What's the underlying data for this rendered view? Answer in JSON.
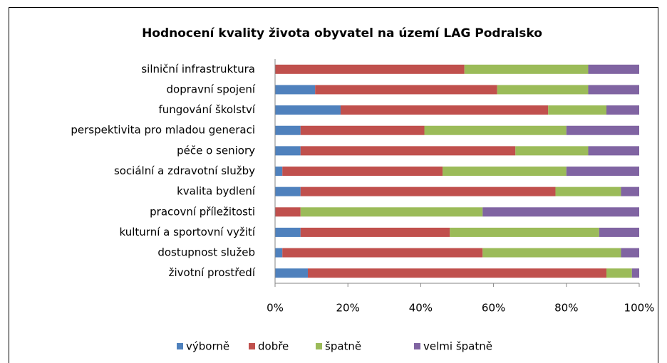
{
  "chart_data": {
    "type": "stacked_bar_horizontal",
    "title": "Hodnocení kvality života obyvatel na území  LAG Podralsko",
    "categories": [
      "silniční infrastruktura",
      "dopravní spojení",
      "fungování školství",
      "perspektivita pro mladou generaci",
      "péče o seniory",
      "sociální a zdravotní služby",
      "kvalita bydlení",
      "pracovní příležitosti",
      "kulturní a sportovní vyžití",
      "dostupnost služeb",
      "životní prostředí"
    ],
    "series": [
      {
        "name": "výborně",
        "color": "#4f81bd",
        "values": [
          0,
          11,
          18,
          7,
          7,
          2,
          7,
          0,
          7,
          2,
          9
        ]
      },
      {
        "name": "dobře",
        "color": "#c0504d",
        "values": [
          52,
          50,
          57,
          34,
          59,
          44,
          70,
          7,
          41,
          55,
          82
        ]
      },
      {
        "name": "špatně",
        "color": "#9bbb59",
        "values": [
          34,
          25,
          16,
          39,
          20,
          34,
          18,
          50,
          41,
          38,
          7
        ]
      },
      {
        "name": "velmi špatně",
        "color": "#8064a2",
        "values": [
          14,
          14,
          9,
          20,
          14,
          20,
          5,
          43,
          11,
          5,
          2
        ]
      }
    ],
    "xlim": [
      0,
      100
    ],
    "xticks": [
      {
        "value": 0,
        "label": "0%"
      },
      {
        "value": 20,
        "label": "20%"
      },
      {
        "value": 40,
        "label": "40%"
      },
      {
        "value": 60,
        "label": "60%"
      },
      {
        "value": 80,
        "label": "80%"
      },
      {
        "value": 100,
        "label": "100%"
      }
    ],
    "legend": "bottom"
  }
}
